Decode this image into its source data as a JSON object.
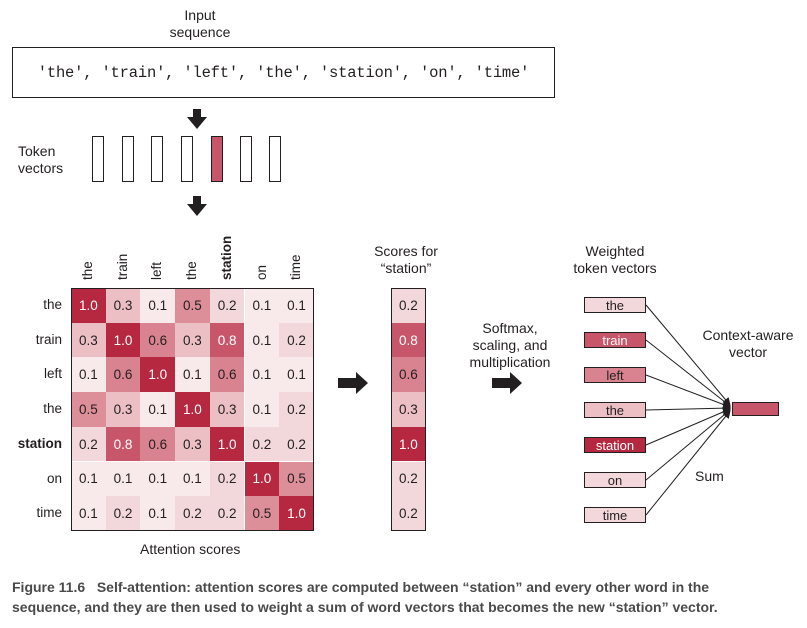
{
  "header": {
    "input_label_1": "Input",
    "input_label_2": "sequence"
  },
  "input_sequence": "'the', 'train', 'left', 'the', 'station', 'on', 'time'",
  "token_vectors": {
    "label_1": "Token",
    "label_2": "vectors",
    "count": 7,
    "highlighted_index": 4
  },
  "matrix": {
    "words": [
      "the",
      "train",
      "left",
      "the",
      "station",
      "on",
      "time"
    ],
    "bold_row_index": 4,
    "values": [
      [
        1.0,
        0.3,
        0.1,
        0.5,
        0.2,
        0.1,
        0.1
      ],
      [
        0.3,
        1.0,
        0.6,
        0.3,
        0.8,
        0.1,
        0.2
      ],
      [
        0.1,
        0.6,
        1.0,
        0.1,
        0.6,
        0.1,
        0.1
      ],
      [
        0.5,
        0.3,
        0.1,
        1.0,
        0.3,
        0.1,
        0.2
      ],
      [
        0.2,
        0.8,
        0.6,
        0.3,
        1.0,
        0.2,
        0.2
      ],
      [
        0.1,
        0.1,
        0.1,
        0.1,
        0.2,
        1.0,
        0.5
      ],
      [
        0.1,
        0.2,
        0.1,
        0.2,
        0.2,
        0.5,
        1.0
      ]
    ],
    "caption": "Attention scores"
  },
  "scores": {
    "label_1": "Scores for",
    "label_2": "“station”",
    "values": [
      0.2,
      0.8,
      0.6,
      0.3,
      1.0,
      0.2,
      0.2
    ]
  },
  "softmax_label": [
    "Softmax,",
    "scaling, and",
    "multiplication"
  ],
  "weighted": {
    "label_1": "Weighted",
    "label_2": "token vectors",
    "words": [
      "the",
      "train",
      "left",
      "the",
      "station",
      "on",
      "time"
    ]
  },
  "context": {
    "label_1": "Context-aware",
    "label_2": "vector",
    "sum_label": "Sum"
  },
  "caption": {
    "figure": "Figure 11.6",
    "text_1": "Self-attention: attention scores are computed between “station” and every other word in the",
    "text_2": "sequence, and they are then used to weight a sum of word vectors that becomes the new “station” vector."
  },
  "colors": {
    "c10": "#b5283f",
    "c08": "#c8566a",
    "c06": "#d8838f",
    "c05": "#dc8e99",
    "c03": "#ecbfc5",
    "c02": "#f3d8db",
    "c01": "#f8e9ea",
    "caption": "#4a4a4a"
  }
}
